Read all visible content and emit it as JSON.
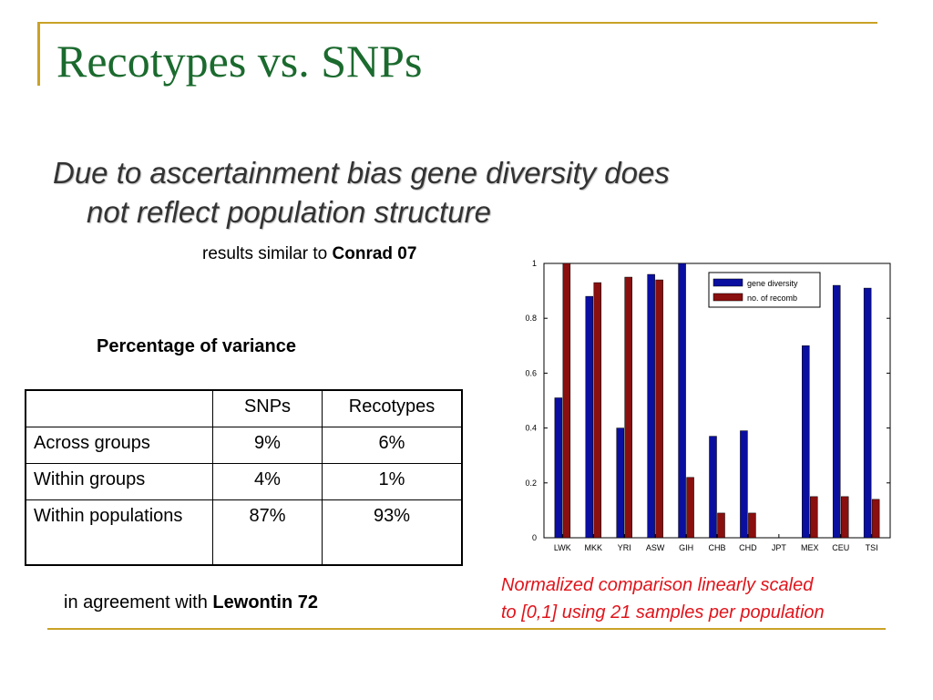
{
  "slide": {
    "title": "Recotypes vs. SNPs",
    "bullet_line1": "Due to ascertainment bias gene diversity does",
    "bullet_line2": "not reflect population structure",
    "note1_prefix": "results similar to ",
    "note1_ref": "Conrad 07",
    "table_title": "Percentage of variance",
    "note2_prefix": "in agreement with ",
    "note2_ref": "Lewontin 72",
    "caption_line1": "Normalized comparison linearly scaled",
    "caption_line2": "to [0,1] using 21 samples per population",
    "accent_color": "#c9a227",
    "title_color": "#1b6a2e",
    "caption_color": "#e0141b"
  },
  "table": {
    "headers": [
      "",
      "SNPs",
      "Recotypes"
    ],
    "rows": [
      [
        "Across groups",
        "9%",
        "6%"
      ],
      [
        "Within groups",
        "4%",
        "1%"
      ],
      [
        "Within populations",
        "87%",
        "93%"
      ]
    ]
  },
  "chart_data": {
    "type": "bar",
    "categories": [
      "LWK",
      "MKK",
      "YRI",
      "ASW",
      "GIH",
      "CHB",
      "CHD",
      "JPT",
      "MEX",
      "CEU",
      "TSI"
    ],
    "series": [
      {
        "name": "gene diversity",
        "color": "#0a0fa0",
        "values": [
          0.51,
          0.88,
          0.4,
          0.96,
          1.0,
          0.37,
          0.39,
          0,
          0.7,
          0.92,
          0.91
        ]
      },
      {
        "name": "no. of recomb",
        "color": "#8a0f0f",
        "values": [
          1.0,
          0.93,
          0.95,
          0.94,
          0.22,
          0.09,
          0.09,
          0,
          0.15,
          0.15,
          0.14
        ]
      }
    ],
    "ylim": [
      0,
      1
    ],
    "yticks": [
      0,
      0.2,
      0.4,
      0.6,
      0.8,
      1
    ],
    "ytick_labels": [
      "0",
      "0.2",
      "0.4",
      "0.6",
      "0.8",
      "1"
    ],
    "legend_position": "top-right",
    "grid": false
  }
}
